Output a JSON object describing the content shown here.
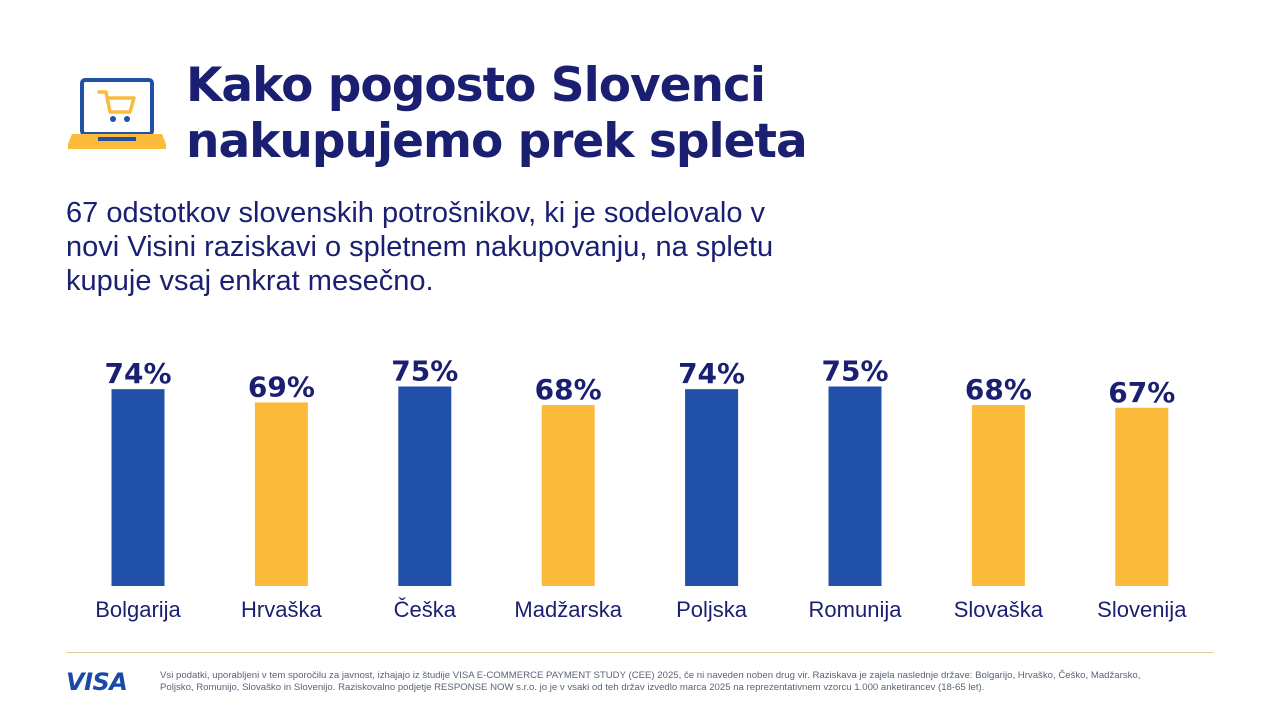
{
  "colors": {
    "navy": "#1a1f71",
    "blue_bar": "#2150a8",
    "yellow_bar": "#fbba3a",
    "visa_blue": "#1a4aa8"
  },
  "header": {
    "icon": "laptop-shopping-cart-icon",
    "title_lines": [
      "Kako pogosto Slovenci",
      "nakupujemo prek spleta"
    ]
  },
  "subtitle_lines": [
    "67 odstotkov slovenskih potrošnikov, ki je sodelovalo v",
    "novi Visini raziskavi o spletnem nakupovanju, na spletu",
    "kupuje vsaj enkrat mesečno."
  ],
  "chart_data": {
    "type": "bar",
    "categories": [
      "Bolgarija",
      "Hrvaška",
      "Češka",
      "Madžarska",
      "Poljska",
      "Romunija",
      "Slovaška",
      "Slovenija"
    ],
    "values": [
      74,
      69,
      75,
      68,
      74,
      75,
      68,
      67
    ],
    "value_labels": [
      "74%",
      "69%",
      "75%",
      "68%",
      "74%",
      "75%",
      "68%",
      "67%"
    ],
    "bar_colors": [
      "#2150a8",
      "#fbba3a",
      "#2150a8",
      "#fbba3a",
      "#2150a8",
      "#2150a8",
      "#fbba3a",
      "#fbba3a"
    ],
    "title": "",
    "xlabel": "",
    "ylabel": "",
    "unit": "%",
    "grid": false,
    "legend": "none"
  },
  "footer": {
    "logo_text": "VISA",
    "footnote_lines": [
      "Vsi podatki, uporabljeni v tem sporočilu za javnost, izhajajo iz študije VISA E-COMMERCE PAYMENT STUDY (CEE) 2025, če ni naveden noben drug vir. Raziskava je zajela naslednje države: Bolgarijo, Hrvaško, Češko, Madžarsko,",
      "Poljsko, Romunijo, Slovaško in Slovenijo. Raziskovalno podjetje RESPONSE NOW s.r.o. jo je v vsaki od teh držav izvedlo marca 2025 na reprezentativnem vzorcu 1.000 anketirancev (18-65 let)."
    ]
  }
}
